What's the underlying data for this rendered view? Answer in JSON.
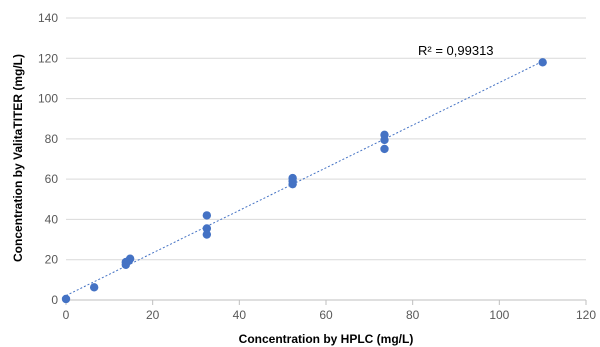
{
  "chart_data": {
    "type": "scatter",
    "xlabel": "Concentration by HPLC (mg/L)",
    "ylabel": "Concentration by ValitaTITER (mg/L)",
    "xlim": [
      0,
      120
    ],
    "ylim": [
      0,
      140
    ],
    "x_ticks": [
      0,
      20,
      40,
      60,
      80,
      100,
      120
    ],
    "y_ticks": [
      0,
      20,
      40,
      60,
      80,
      100,
      120,
      140
    ],
    "grid": "horizontal",
    "legend": "none",
    "series": [
      {
        "color": "#4472C4",
        "points": [
          {
            "x": 0,
            "y": 0.5
          },
          {
            "x": 6.5,
            "y": 6.3
          },
          {
            "x": 13.8,
            "y": 17.5
          },
          {
            "x": 13.8,
            "y": 18.8
          },
          {
            "x": 14.5,
            "y": 19.5
          },
          {
            "x": 14.8,
            "y": 20.5
          },
          {
            "x": 32.5,
            "y": 32.5
          },
          {
            "x": 32.5,
            "y": 35.5
          },
          {
            "x": 32.5,
            "y": 42
          },
          {
            "x": 52.3,
            "y": 57.5
          },
          {
            "x": 52.3,
            "y": 59
          },
          {
            "x": 52.3,
            "y": 60.5
          },
          {
            "x": 73.5,
            "y": 75
          },
          {
            "x": 73.5,
            "y": 79.5
          },
          {
            "x": 73.5,
            "y": 82
          },
          {
            "x": 110,
            "y": 118
          }
        ]
      }
    ],
    "trendline": {
      "type": "linear",
      "style": "dotted",
      "color": "#4472C4",
      "from": {
        "x": 0,
        "y": 2.2
      },
      "to": {
        "x": 110,
        "y": 118.5
      }
    },
    "annotations": [
      {
        "text": "R² = 0,99313",
        "x": 96,
        "y": 122
      }
    ]
  }
}
